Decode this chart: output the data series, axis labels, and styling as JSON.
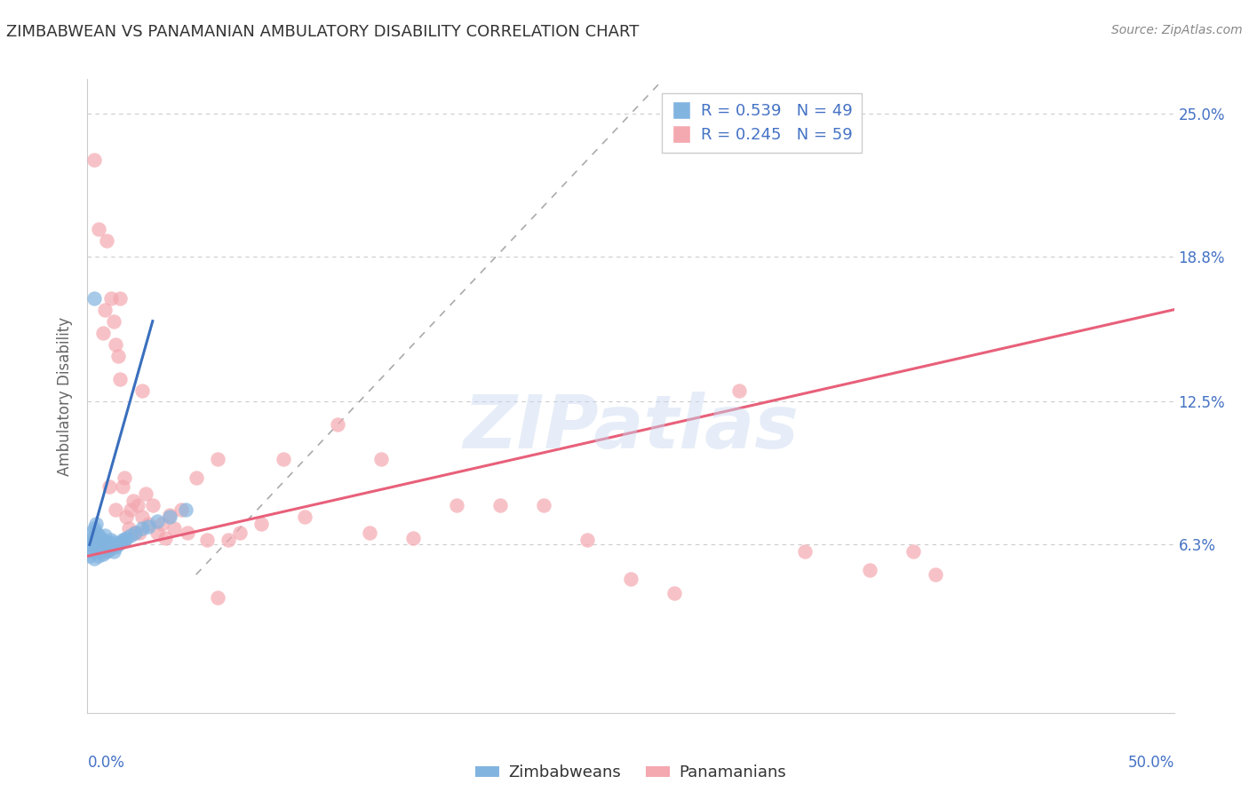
{
  "title": "ZIMBABWEAN VS PANAMANIAN AMBULATORY DISABILITY CORRELATION CHART",
  "source_text": "Source: ZipAtlas.com",
  "ylabel": "Ambulatory Disability",
  "watermark": "ZIPatlas",
  "xlim": [
    0.0,
    0.5
  ],
  "ylim": [
    -0.01,
    0.265
  ],
  "ytick_positions": [
    0.063,
    0.125,
    0.188,
    0.25
  ],
  "ytick_labels": [
    "6.3%",
    "12.5%",
    "18.8%",
    "25.0%"
  ],
  "blue_R": 0.539,
  "blue_N": 49,
  "pink_R": 0.245,
  "pink_N": 59,
  "blue_color": "#82b4e0",
  "pink_color": "#f4a8b0",
  "blue_line_color": "#3a6fbd",
  "pink_line_color": "#e8607a",
  "legend_label_blue": "Zimbabweans",
  "legend_label_pink": "Panamanians",
  "blue_scatter_x": [
    0.001,
    0.001,
    0.002,
    0.002,
    0.002,
    0.003,
    0.003,
    0.003,
    0.003,
    0.004,
    0.004,
    0.004,
    0.004,
    0.004,
    0.005,
    0.005,
    0.005,
    0.005,
    0.006,
    0.006,
    0.006,
    0.007,
    0.007,
    0.007,
    0.008,
    0.008,
    0.008,
    0.009,
    0.009,
    0.01,
    0.01,
    0.011,
    0.011,
    0.012,
    0.012,
    0.013,
    0.014,
    0.015,
    0.016,
    0.017,
    0.018,
    0.02,
    0.022,
    0.025,
    0.028,
    0.032,
    0.038,
    0.045,
    0.003
  ],
  "blue_scatter_y": [
    0.058,
    0.065,
    0.06,
    0.063,
    0.068,
    0.057,
    0.062,
    0.065,
    0.07,
    0.06,
    0.063,
    0.065,
    0.068,
    0.072,
    0.058,
    0.061,
    0.064,
    0.067,
    0.06,
    0.063,
    0.066,
    0.059,
    0.062,
    0.065,
    0.061,
    0.064,
    0.067,
    0.06,
    0.063,
    0.061,
    0.064,
    0.062,
    0.065,
    0.06,
    0.064,
    0.062,
    0.063,
    0.064,
    0.065,
    0.065,
    0.066,
    0.067,
    0.068,
    0.07,
    0.071,
    0.073,
    0.075,
    0.078,
    0.17
  ],
  "pink_scatter_x": [
    0.003,
    0.005,
    0.007,
    0.008,
    0.009,
    0.01,
    0.011,
    0.012,
    0.013,
    0.013,
    0.014,
    0.015,
    0.016,
    0.017,
    0.018,
    0.019,
    0.02,
    0.021,
    0.022,
    0.023,
    0.024,
    0.025,
    0.027,
    0.028,
    0.03,
    0.032,
    0.034,
    0.036,
    0.038,
    0.04,
    0.043,
    0.046,
    0.05,
    0.055,
    0.06,
    0.065,
    0.07,
    0.08,
    0.09,
    0.1,
    0.115,
    0.13,
    0.15,
    0.17,
    0.19,
    0.21,
    0.23,
    0.25,
    0.27,
    0.3,
    0.33,
    0.36,
    0.39,
    0.008,
    0.015,
    0.025,
    0.06,
    0.135,
    0.38
  ],
  "pink_scatter_y": [
    0.23,
    0.2,
    0.155,
    0.165,
    0.195,
    0.088,
    0.17,
    0.16,
    0.15,
    0.078,
    0.145,
    0.135,
    0.088,
    0.092,
    0.075,
    0.07,
    0.078,
    0.082,
    0.068,
    0.08,
    0.068,
    0.075,
    0.085,
    0.072,
    0.08,
    0.068,
    0.072,
    0.066,
    0.076,
    0.07,
    0.078,
    0.068,
    0.092,
    0.065,
    0.1,
    0.065,
    0.068,
    0.072,
    0.1,
    0.075,
    0.115,
    0.068,
    0.066,
    0.08,
    0.08,
    0.08,
    0.065,
    0.048,
    0.042,
    0.13,
    0.06,
    0.052,
    0.05,
    0.06,
    0.17,
    0.13,
    0.04,
    0.1,
    0.06
  ],
  "blue_line_x": [
    0.001,
    0.03
  ],
  "blue_line_y": [
    0.063,
    0.16
  ],
  "pink_line_x": [
    0.0,
    0.5
  ],
  "pink_line_y": [
    0.058,
    0.165
  ],
  "ref_line_x": [
    0.05,
    0.265
  ],
  "ref_line_y": [
    0.05,
    0.265
  ],
  "background_color": "#ffffff",
  "grid_color": "#cccccc",
  "title_color": "#333333",
  "axis_label_color": "#666666",
  "tick_color": "#4472c4"
}
